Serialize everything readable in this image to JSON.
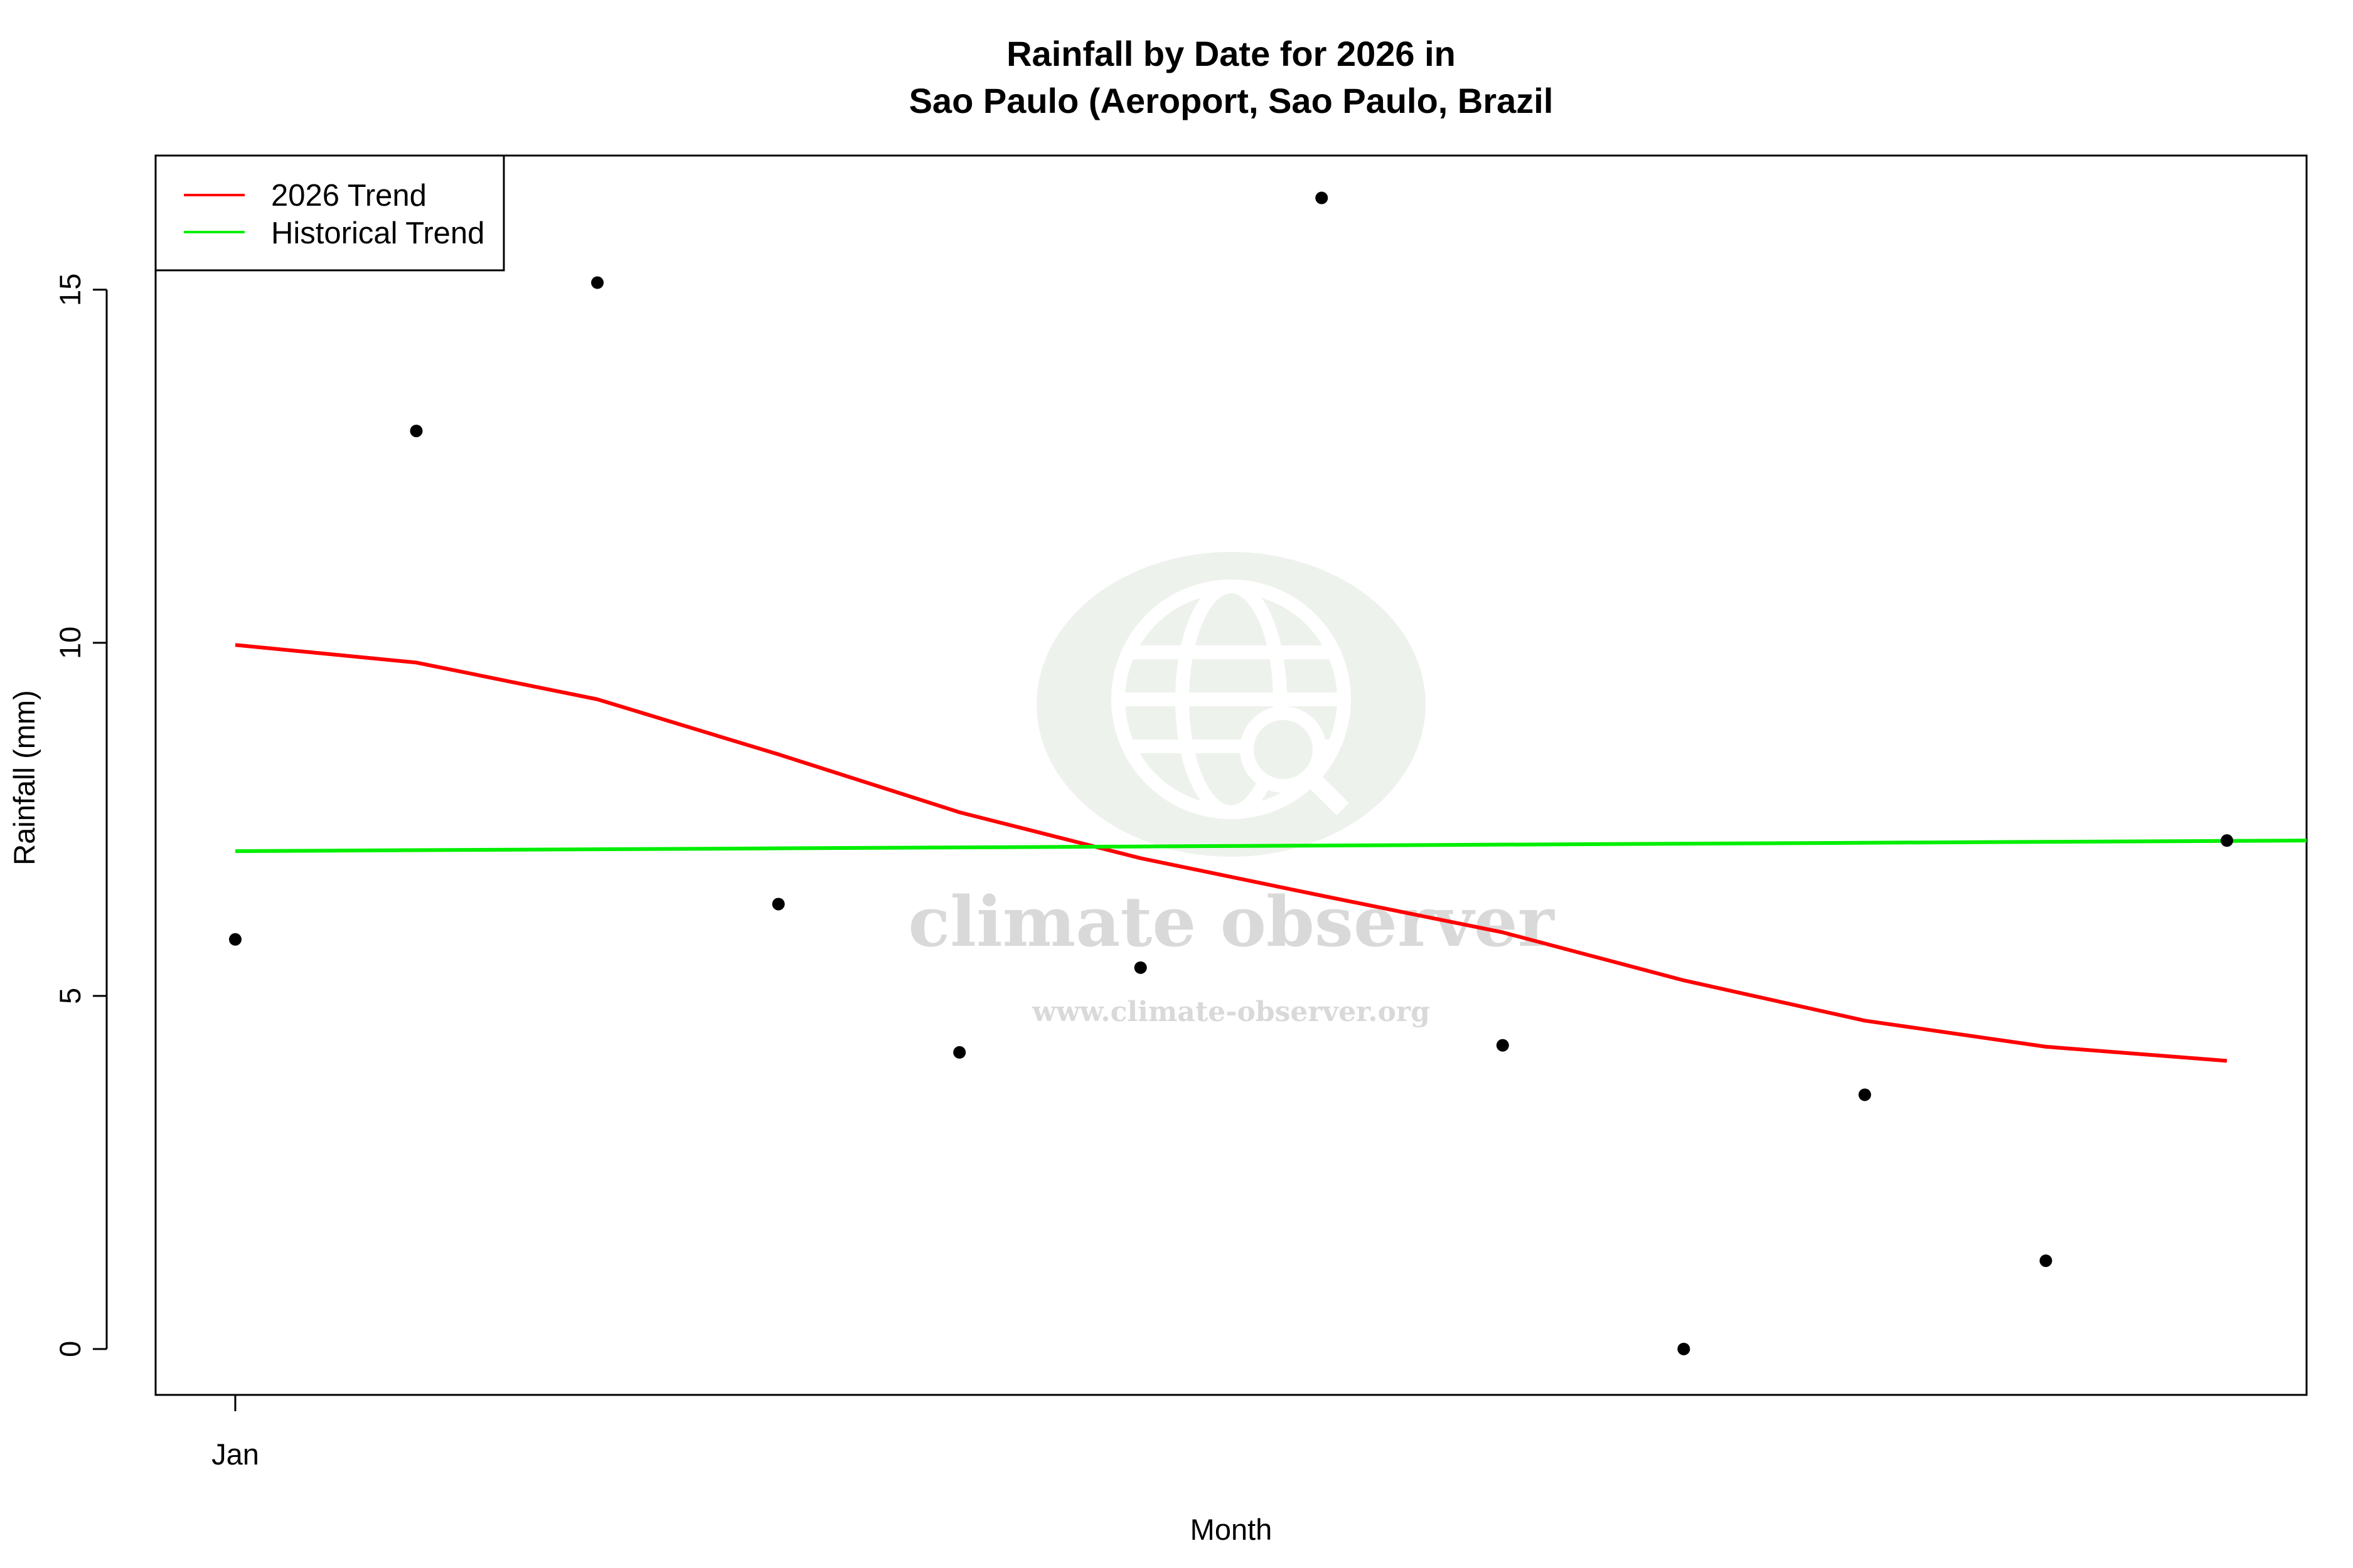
{
  "chart_data": {
    "type": "scatter",
    "title_line1": "Rainfall by Date for 2026 in",
    "title_line2": "Sao Paulo (Aeroport, Sao Paulo, Brazil",
    "xlabel": "Month",
    "ylabel": "Rainfall (mm)",
    "xlim": [
      0.56,
      12.44
    ],
    "ylim": [
      -0.65,
      16.9
    ],
    "x_ticks": [
      {
        "x": 1,
        "label": "Jan"
      }
    ],
    "y_ticks": [
      0,
      5,
      10,
      15
    ],
    "points": [
      {
        "x": 1,
        "y": 5.8
      },
      {
        "x": 2,
        "y": 13.0
      },
      {
        "x": 3,
        "y": 15.1
      },
      {
        "x": 4,
        "y": 6.3
      },
      {
        "x": 5,
        "y": 4.2
      },
      {
        "x": 6,
        "y": 5.4
      },
      {
        "x": 7,
        "y": 16.3
      },
      {
        "x": 8,
        "y": 4.3
      },
      {
        "x": 9,
        "y": 0.0
      },
      {
        "x": 10,
        "y": 3.6
      },
      {
        "x": 11,
        "y": 1.25
      },
      {
        "x": 12,
        "y": 7.2
      }
    ],
    "series": [
      {
        "name": "2026 Trend",
        "color": "#ff0000",
        "x": [
          1,
          2,
          3,
          4,
          5,
          6,
          7,
          8,
          9,
          10,
          11,
          12
        ],
        "y": [
          9.97,
          9.72,
          9.2,
          8.42,
          7.6,
          6.95,
          6.42,
          5.9,
          5.22,
          4.65,
          4.28,
          4.08
        ]
      },
      {
        "name": "Historical Trend",
        "color": "#00ee00",
        "x": [
          1,
          12.44
        ],
        "y": [
          7.05,
          7.2
        ]
      }
    ],
    "legend_position": "top-left",
    "grid": false
  },
  "watermark": {
    "name": "climate observer",
    "url": "www.climate-observer.org",
    "icon": "globe-search-icon"
  }
}
